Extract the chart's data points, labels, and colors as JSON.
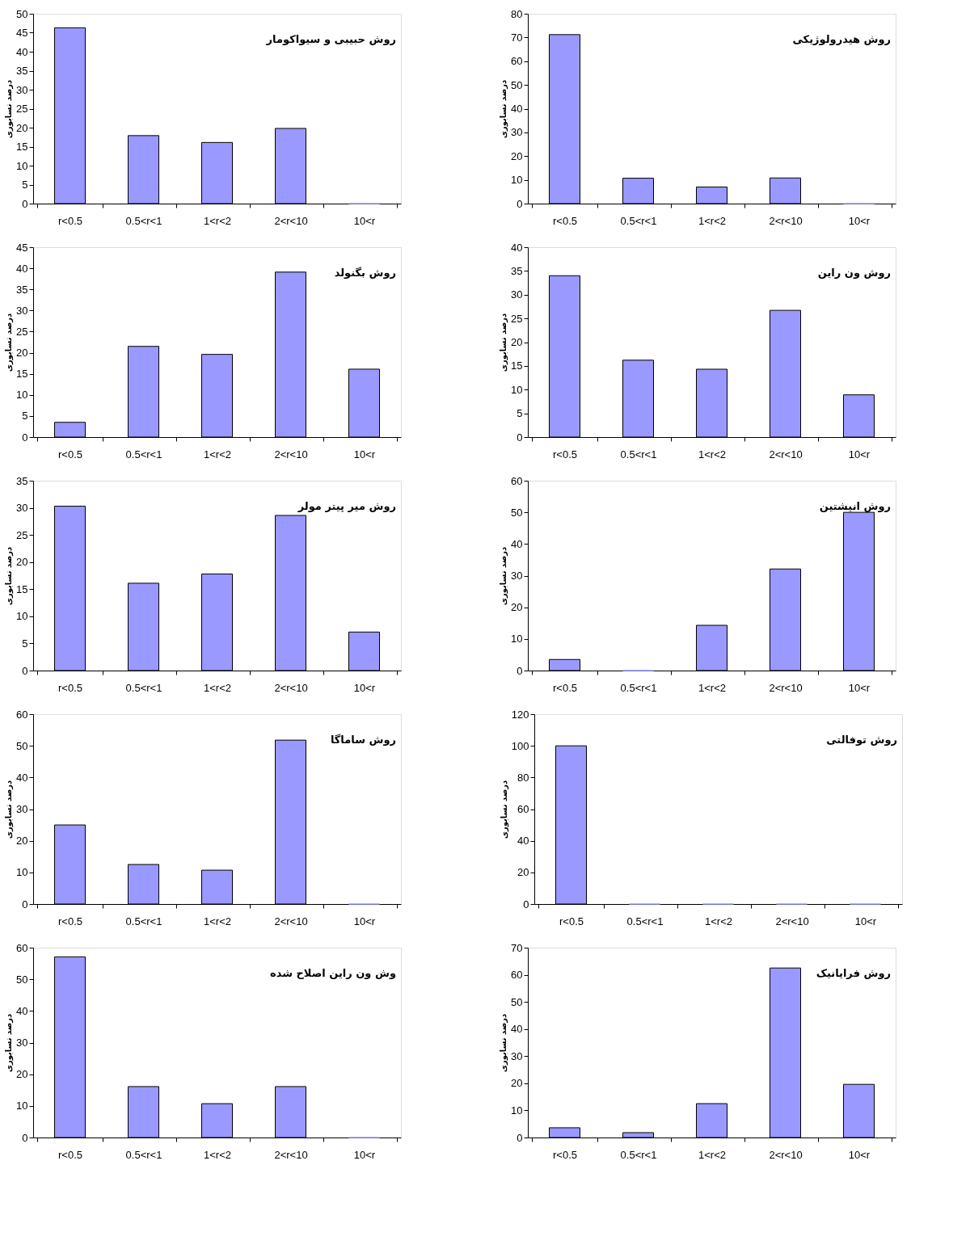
{
  "chart_data": [
    {
      "type": "bar",
      "title": "روش حبیبی و سیواکومار",
      "ylabel": "درصد نسابوری",
      "categories": [
        "r<0.5",
        "0.5<r<1",
        "1<r<2",
        "2<r<10",
        "10<r"
      ],
      "values": [
        46.3,
        17.9,
        16.1,
        19.8,
        0
      ],
      "color": "#9999ff",
      "ylim": [
        0,
        50
      ],
      "yticks": [
        0,
        5,
        10,
        15,
        20,
        25,
        30,
        35,
        40,
        45,
        50
      ],
      "grid": false
    },
    {
      "type": "bar",
      "title": "روش هیدرولوژیکی",
      "ylabel": "درصد نسابوری",
      "categories": [
        "r<0.5",
        "0.5<r<1",
        "1<r<2",
        "2<r<10",
        "10<r"
      ],
      "values": [
        71.2,
        10.7,
        7.0,
        10.8,
        0
      ],
      "color": "#9999ff",
      "ylim": [
        0,
        80
      ],
      "yticks": [
        0,
        10,
        20,
        30,
        40,
        50,
        60,
        70,
        80
      ],
      "grid": false
    },
    {
      "type": "bar",
      "title": "روش بگنولد",
      "ylabel": "درصد نسابوری",
      "categories": [
        "r<0.5",
        "0.5<r<1",
        "1<r<2",
        "2<r<10",
        "10<r"
      ],
      "values": [
        3.5,
        21.5,
        19.6,
        39.1,
        16.1
      ],
      "color": "#9999ff",
      "ylim": [
        0,
        45
      ],
      "yticks": [
        0,
        5,
        10,
        15,
        20,
        25,
        30,
        35,
        40,
        45
      ],
      "grid": false
    },
    {
      "type": "bar",
      "title": "روش ون راین",
      "ylabel": "درصد نسابوری",
      "categories": [
        "r<0.5",
        "0.5<r<1",
        "1<r<2",
        "2<r<10",
        "10<r"
      ],
      "values": [
        34.0,
        16.2,
        14.3,
        26.7,
        8.9
      ],
      "color": "#9999ff",
      "ylim": [
        0,
        40
      ],
      "yticks": [
        0,
        5,
        10,
        15,
        20,
        25,
        30,
        35,
        40
      ],
      "grid": false
    },
    {
      "type": "bar",
      "title": "روش میر پیتر مولر",
      "ylabel": "درصد نسابوری",
      "categories": [
        "r<0.5",
        "0.5<r<1",
        "1<r<2",
        "2<r<10",
        "10<r"
      ],
      "values": [
        30.3,
        16.1,
        17.8,
        28.6,
        7.1
      ],
      "color": "#9999ff",
      "ylim": [
        0,
        35
      ],
      "yticks": [
        0,
        5,
        10,
        15,
        20,
        25,
        30,
        35
      ],
      "grid": false
    },
    {
      "type": "bar",
      "title": "روش انیشتین",
      "ylabel": "درصد نسابوری",
      "categories": [
        "r<0.5",
        "0.5<r<1",
        "1<r<2",
        "2<r<10",
        "10<r"
      ],
      "values": [
        3.5,
        0,
        14.3,
        32.1,
        50.0
      ],
      "color": "#9999ff",
      "ylim": [
        0,
        60
      ],
      "yticks": [
        0,
        10,
        20,
        30,
        40,
        50,
        60
      ],
      "grid": false
    },
    {
      "type": "bar",
      "title": "روش ساماگا",
      "ylabel": "درصد نسابوری",
      "categories": [
        "r<0.5",
        "0.5<r<1",
        "1<r<2",
        "2<r<10",
        "10<r"
      ],
      "values": [
        25.0,
        12.5,
        10.7,
        51.8,
        0
      ],
      "color": "#9999ff",
      "ylim": [
        0,
        60
      ],
      "yticks": [
        0,
        10,
        20,
        30,
        40,
        50,
        60
      ],
      "grid": false
    },
    {
      "type": "bar",
      "title": "روش توفالتی",
      "ylabel": "درصد نسابوری",
      "categories": [
        "r<0.5",
        "0.5<r<1",
        "1<r<2",
        "2<r<10",
        "10<r"
      ],
      "values": [
        100,
        0,
        0,
        0,
        0
      ],
      "color": "#9999ff",
      "ylim": [
        0,
        120
      ],
      "yticks": [
        0,
        20,
        40,
        60,
        80,
        100,
        120
      ],
      "grid": false
    },
    {
      "type": "bar",
      "title": "وش ون راین اصلاح شده",
      "ylabel": "درصد نسابوری",
      "categories": [
        "r<0.5",
        "0.5<r<1",
        "1<r<2",
        "2<r<10",
        "10<r"
      ],
      "values": [
        57.1,
        16.1,
        10.7,
        16.1,
        0
      ],
      "color": "#9999ff",
      "ylim": [
        0,
        60
      ],
      "yticks": [
        0,
        10,
        20,
        30,
        40,
        50,
        60
      ],
      "grid": false
    },
    {
      "type": "bar",
      "title": "روش فرایانیک",
      "ylabel": "درصد نسابوری",
      "categories": [
        "r<0.5",
        "0.5<r<1",
        "1<r<2",
        "2<r<10",
        "10<r"
      ],
      "values": [
        3.6,
        1.8,
        12.5,
        62.5,
        19.6
      ],
      "color": "#9999ff",
      "ylim": [
        0,
        70
      ],
      "yticks": [
        0,
        10,
        20,
        30,
        40,
        50,
        60,
        70
      ],
      "grid": false
    }
  ]
}
